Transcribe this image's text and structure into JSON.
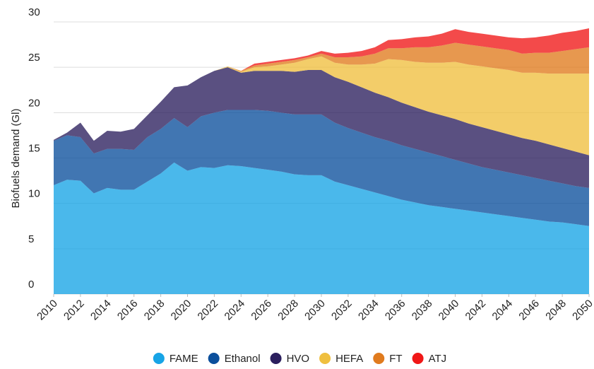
{
  "chart_data": {
    "type": "stacked_area",
    "y_label": "Biofuels demand (Gl)",
    "x": [
      2010,
      2011,
      2012,
      2013,
      2014,
      2015,
      2016,
      2017,
      2018,
      2019,
      2020,
      2021,
      2022,
      2023,
      2024,
      2025,
      2026,
      2027,
      2028,
      2029,
      2030,
      2031,
      2032,
      2033,
      2034,
      2035,
      2036,
      2037,
      2038,
      2039,
      2040,
      2041,
      2042,
      2043,
      2044,
      2045,
      2046,
      2047,
      2048,
      2049,
      2050
    ],
    "xlim": [
      2010,
      2050
    ],
    "xticks": [
      2010,
      2012,
      2014,
      2016,
      2018,
      2020,
      2022,
      2024,
      2026,
      2028,
      2030,
      2032,
      2034,
      2036,
      2038,
      2040,
      2042,
      2044,
      2046,
      2048,
      2050
    ],
    "ylim": [
      0,
      30
    ],
    "yticks": [
      0,
      5,
      10,
      15,
      20,
      25,
      30
    ],
    "grid": true,
    "legend": "bottom",
    "series": [
      {
        "name": "FAME",
        "color": "#17a4e6",
        "values": [
          12,
          12.6,
          12.5,
          11.1,
          11.7,
          11.5,
          11.5,
          12.4,
          13.3,
          14.5,
          13.6,
          14.0,
          13.9,
          14.2,
          14.1,
          13.9,
          13.7,
          13.5,
          13.2,
          13.1,
          13.1,
          12.4,
          12.0,
          11.6,
          11.2,
          10.8,
          10.4,
          10.1,
          9.8,
          9.6,
          9.4,
          9.2,
          9.0,
          8.8,
          8.6,
          8.4,
          8.2,
          8.0,
          7.9,
          7.7,
          7.5
        ]
      },
      {
        "name": "Ethanol",
        "color": "#0b4f9c",
        "values": [
          4.9,
          4.9,
          4.8,
          4.4,
          4.3,
          4.5,
          4.4,
          4.9,
          4.9,
          4.9,
          4.8,
          5.6,
          6.1,
          6.1,
          6.2,
          6.4,
          6.5,
          6.5,
          6.6,
          6.7,
          6.7,
          6.5,
          6.3,
          6.2,
          6.1,
          6.1,
          6.0,
          5.9,
          5.8,
          5.6,
          5.4,
          5.2,
          5.0,
          4.9,
          4.8,
          4.7,
          4.6,
          4.5,
          4.3,
          4.2,
          4.2
        ]
      },
      {
        "name": "HVO",
        "color": "#2b1f5e",
        "values": [
          0.1,
          0.3,
          1.6,
          1.4,
          2.0,
          1.9,
          2.3,
          2.4,
          3.0,
          3.4,
          4.6,
          4.3,
          4.6,
          4.7,
          4.1,
          4.3,
          4.4,
          4.6,
          4.7,
          4.9,
          4.9,
          5.0,
          5.1,
          5.0,
          4.9,
          4.8,
          4.7,
          4.6,
          4.5,
          4.5,
          4.5,
          4.4,
          4.4,
          4.3,
          4.2,
          4.1,
          4.1,
          4.0,
          3.9,
          3.8,
          3.6
        ]
      },
      {
        "name": "HEFA",
        "color": "#efbf3f",
        "values": [
          0,
          0,
          0,
          0,
          0,
          0,
          0,
          0,
          0,
          0,
          0,
          0,
          0,
          0.1,
          0.1,
          0.4,
          0.5,
          0.7,
          1.0,
          1.2,
          1.5,
          1.6,
          1.9,
          2.5,
          3.2,
          4.2,
          4.7,
          5.0,
          5.4,
          5.8,
          6.3,
          6.5,
          6.7,
          6.9,
          7.1,
          7.2,
          7.5,
          7.8,
          8.2,
          8.6,
          9.0
        ]
      },
      {
        "name": "FT",
        "color": "#e07b1e",
        "values": [
          0,
          0,
          0,
          0,
          0,
          0,
          0,
          0,
          0,
          0,
          0,
          0,
          0,
          0,
          0.1,
          0.2,
          0.3,
          0.3,
          0.3,
          0.2,
          0.3,
          0.6,
          0.8,
          0.9,
          1.1,
          1.2,
          1.3,
          1.6,
          1.7,
          1.9,
          2.1,
          2.2,
          2.2,
          2.2,
          2.2,
          2.1,
          2.2,
          2.3,
          2.5,
          2.7,
          2.9
        ]
      },
      {
        "name": "ATJ",
        "color": "#f01717",
        "values": [
          0,
          0,
          0,
          0,
          0,
          0,
          0,
          0,
          0,
          0,
          0,
          0,
          0,
          0,
          0,
          0.2,
          0.2,
          0.2,
          0.2,
          0.2,
          0.3,
          0.4,
          0.5,
          0.6,
          0.7,
          0.9,
          1.0,
          1.1,
          1.2,
          1.3,
          1.5,
          1.4,
          1.4,
          1.4,
          1.4,
          1.7,
          1.7,
          1.9,
          2.0,
          2.0,
          2.1
        ]
      }
    ]
  }
}
